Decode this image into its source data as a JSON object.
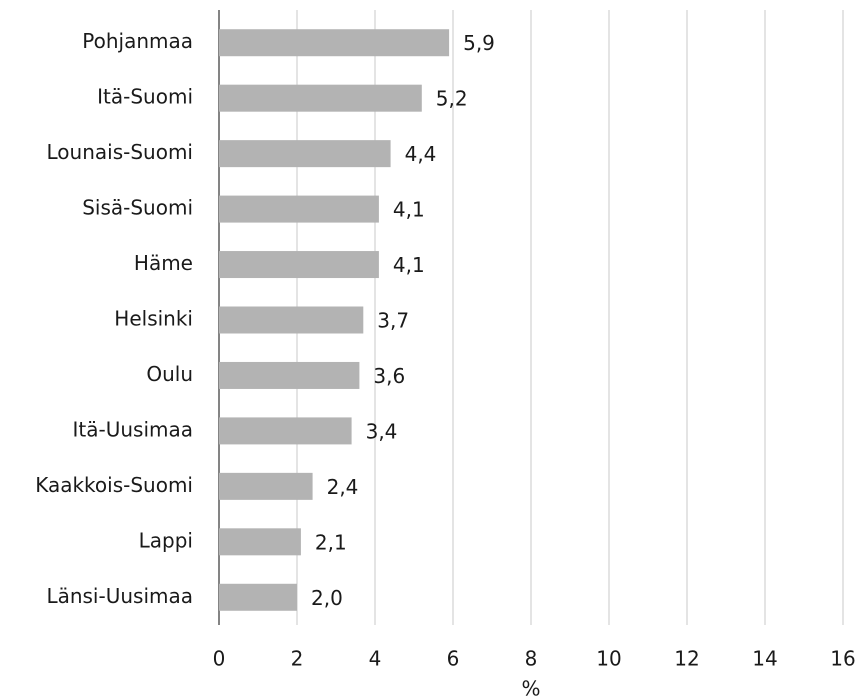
{
  "chart_data": {
    "type": "bar",
    "orientation": "horizontal",
    "categories": [
      "Pohjanmaa",
      "Itä-Suomi",
      "Lounais-Suomi",
      "Sisä-Suomi",
      "Häme",
      "Helsinki",
      "Oulu",
      "Itä-Uusimaa",
      "Kaakkois-Suomi",
      "Lappi",
      "Länsi-Uusimaa"
    ],
    "values": [
      5.9,
      5.2,
      4.4,
      4.1,
      4.1,
      3.7,
      3.6,
      3.4,
      2.4,
      2.1,
      2.0
    ],
    "value_labels": [
      "5,9",
      "5,2",
      "4,4",
      "4,1",
      "4,1",
      "3,7",
      "3,6",
      "3,4",
      "2,4",
      "2,1",
      "2,0"
    ],
    "color": "#b3b3b3",
    "x_label": "%",
    "xlim": [
      0,
      16
    ],
    "xticks": [
      0,
      2,
      4,
      6,
      8,
      10,
      12,
      14,
      16
    ],
    "grid": true
  }
}
